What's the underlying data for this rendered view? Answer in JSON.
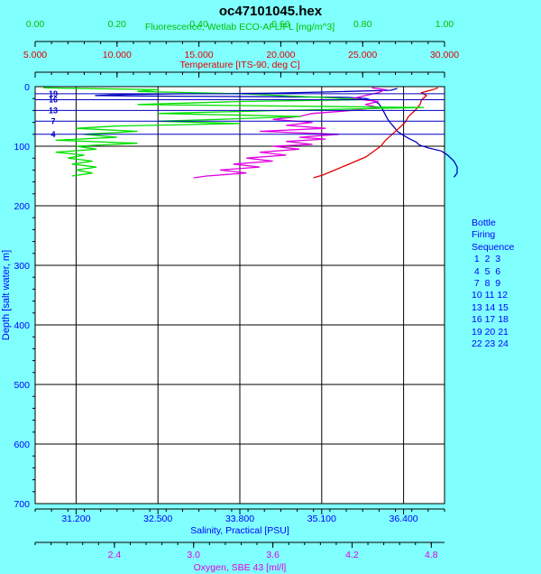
{
  "chart_data": {
    "type": "line",
    "title": "oc47101045.hex",
    "grid": true,
    "y_axis": {
      "label": "Depth [salt water, m]",
      "range": [
        0,
        700
      ],
      "ticks": [
        "0",
        "100",
        "200",
        "300",
        "400",
        "500",
        "600",
        "700"
      ],
      "reversed": true
    },
    "x_axes": [
      {
        "id": "fluorescence",
        "label": "Fluorescence, Wetlab ECO-AFL/FL [mg/m^3]",
        "position": "top-1",
        "color": "#00c000",
        "range": [
          0,
          1
        ],
        "ticks": [
          "0.00",
          "0.20",
          "0.40",
          "0.60",
          "0.80",
          "1.00"
        ]
      },
      {
        "id": "temperature",
        "label": "Temperature [ITS-90, deg C]",
        "position": "top-2",
        "color": "#e00000",
        "range": [
          5,
          30
        ],
        "ticks": [
          "5.000",
          "10.000",
          "15.000",
          "20.000",
          "25.000",
          "30.000"
        ]
      },
      {
        "id": "salinity",
        "label": "Salinity, Practical [PSU]",
        "position": "bottom-1",
        "color": "#0000ff",
        "range": [
          30.55,
          37.05
        ],
        "ticks": [
          "31.200",
          "32.500",
          "33.800",
          "35.100",
          "36.400"
        ],
        "tick_values": [
          31.2,
          32.5,
          33.8,
          35.1,
          36.4
        ]
      },
      {
        "id": "oxygen",
        "label": "Oxygen, SBE 43 [ml/l]",
        "position": "bottom-2",
        "color": "#e000e0",
        "range": [
          1.8,
          4.9
        ],
        "ticks": [
          "2.4",
          "3.0",
          "3.6",
          "4.2",
          "4.8"
        ],
        "tick_values": [
          2.4,
          3.0,
          3.6,
          4.2,
          4.8
        ]
      }
    ],
    "series": [
      {
        "axis": "salinity",
        "color": "#0000c0",
        "points": [
          [
            36.3,
            3
          ],
          [
            36.2,
            6
          ],
          [
            35.2,
            9
          ],
          [
            34.3,
            11
          ],
          [
            33.0,
            12
          ],
          [
            32.0,
            13
          ],
          [
            31.5,
            15
          ],
          [
            32.8,
            16
          ],
          [
            34.5,
            17
          ],
          [
            35.5,
            18
          ],
          [
            35.8,
            20
          ],
          [
            35.9,
            23
          ],
          [
            36.0,
            28
          ],
          [
            36.05,
            35
          ],
          [
            36.1,
            45
          ],
          [
            36.15,
            55
          ],
          [
            36.2,
            62
          ],
          [
            36.25,
            68
          ],
          [
            36.3,
            75
          ],
          [
            36.4,
            82
          ],
          [
            36.5,
            88
          ],
          [
            36.6,
            93
          ],
          [
            36.65,
            98
          ],
          [
            36.8,
            103
          ],
          [
            37.0,
            108
          ],
          [
            37.1,
            115
          ],
          [
            37.2,
            125
          ],
          [
            37.25,
            135
          ],
          [
            37.25,
            145
          ],
          [
            37.2,
            152
          ]
        ]
      },
      {
        "axis": "temperature",
        "color": "#e00000",
        "points": [
          [
            29.6,
            2
          ],
          [
            29.3,
            5
          ],
          [
            28.6,
            10
          ],
          [
            28.9,
            15
          ],
          [
            28.6,
            22
          ],
          [
            28.5,
            30
          ],
          [
            28.2,
            40
          ],
          [
            27.8,
            50
          ],
          [
            27.6,
            60
          ],
          [
            27.2,
            70
          ],
          [
            26.8,
            80
          ],
          [
            26.4,
            90
          ],
          [
            26.1,
            100
          ],
          [
            25.6,
            110
          ],
          [
            25.2,
            118
          ],
          [
            24.6,
            125
          ],
          [
            24.0,
            132
          ],
          [
            23.3,
            140
          ],
          [
            22.6,
            148
          ],
          [
            22.0,
            153
          ]
        ]
      },
      {
        "axis": "oxygen",
        "color": "#e000e0",
        "points": [
          [
            4.35,
            2
          ],
          [
            4.45,
            5
          ],
          [
            4.4,
            10
          ],
          [
            4.3,
            15
          ],
          [
            4.2,
            20
          ],
          [
            4.4,
            25
          ],
          [
            4.3,
            30
          ],
          [
            4.4,
            35
          ],
          [
            4.2,
            40
          ],
          [
            3.9,
            45
          ],
          [
            3.8,
            50
          ],
          [
            3.6,
            55
          ],
          [
            3.9,
            60
          ],
          [
            3.7,
            65
          ],
          [
            4.0,
            70
          ],
          [
            3.5,
            75
          ],
          [
            4.1,
            80
          ],
          [
            3.8,
            85
          ],
          [
            4.0,
            88
          ],
          [
            3.7,
            92
          ],
          [
            3.9,
            97
          ],
          [
            3.6,
            100
          ],
          [
            3.8,
            105
          ],
          [
            3.5,
            110
          ],
          [
            3.7,
            115
          ],
          [
            3.4,
            120
          ],
          [
            3.6,
            125
          ],
          [
            3.3,
            130
          ],
          [
            3.5,
            135
          ],
          [
            3.2,
            140
          ],
          [
            3.4,
            145
          ],
          [
            3.1,
            150
          ],
          [
            3.0,
            153
          ]
        ]
      },
      {
        "axis": "fluorescence",
        "color": "#00e000",
        "points": [
          [
            0.02,
            2
          ],
          [
            0.3,
            5
          ],
          [
            0.25,
            8
          ],
          [
            0.5,
            12
          ],
          [
            0.7,
            18
          ],
          [
            0.8,
            22
          ],
          [
            0.5,
            25
          ],
          [
            0.25,
            30
          ],
          [
            0.95,
            35
          ],
          [
            0.6,
            40
          ],
          [
            0.3,
            45
          ],
          [
            0.65,
            50
          ],
          [
            0.45,
            55
          ],
          [
            0.3,
            58
          ],
          [
            0.5,
            62
          ],
          [
            0.2,
            66
          ],
          [
            0.1,
            70
          ],
          [
            0.25,
            75
          ],
          [
            0.12,
            80
          ],
          [
            0.2,
            85
          ],
          [
            0.05,
            90
          ],
          [
            0.25,
            95
          ],
          [
            0.1,
            100
          ],
          [
            0.15,
            105
          ],
          [
            0.05,
            110
          ],
          [
            0.12,
            115
          ],
          [
            0.08,
            120
          ],
          [
            0.14,
            125
          ],
          [
            0.09,
            130
          ],
          [
            0.15,
            135
          ],
          [
            0.1,
            140
          ],
          [
            0.14,
            145
          ],
          [
            0.09,
            150
          ]
        ]
      }
    ],
    "bottle_lines": {
      "color": "#0000c0",
      "depths": [
        12,
        22,
        40,
        58,
        80
      ]
    },
    "bottle_markers": [
      {
        "label": "19",
        "depth": 12
      },
      {
        "label": "16",
        "depth": 22
      },
      {
        "label": "13",
        "depth": 40
      },
      {
        "label": "7",
        "depth": 58
      },
      {
        "label": "4",
        "depth": 80
      }
    ],
    "legend": {
      "position": "right",
      "title_lines": [
        "Bottle",
        "Firing",
        "Sequence"
      ],
      "rows": [
        " 1  2  3",
        " 4  5  6",
        " 7  8  9",
        "10 11 12",
        "13 14 15",
        "16 17 18",
        "19 20 21",
        "22 23 24"
      ]
    }
  }
}
